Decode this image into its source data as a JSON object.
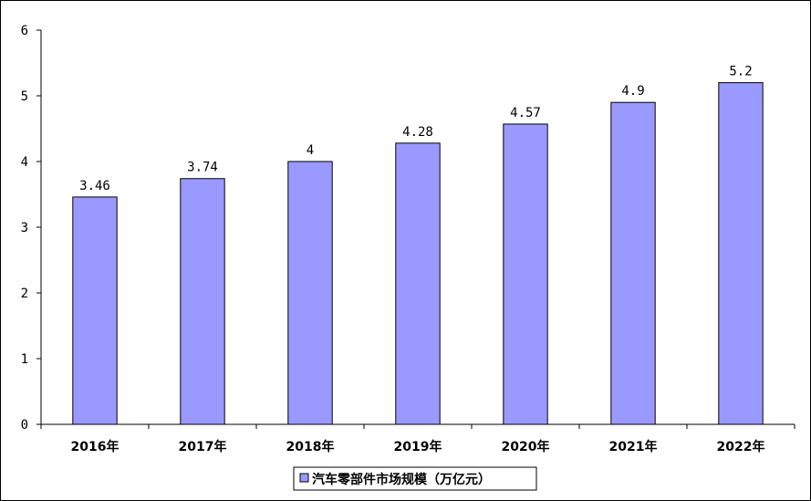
{
  "chart_data": {
    "type": "bar",
    "categories": [
      "2016年",
      "2017年",
      "2018年",
      "2019年",
      "2020年",
      "2021年",
      "2022年"
    ],
    "series": [
      {
        "name": "汽车零部件市场规模（万亿元）",
        "values": [
          3.46,
          3.74,
          4,
          4.28,
          4.57,
          4.9,
          5.2
        ],
        "labels": [
          "3.46",
          "3.74",
          "4",
          "4.28",
          "4.57",
          "4.9",
          "5.2"
        ],
        "color": "#9999ff"
      }
    ],
    "title": "",
    "xlabel": "",
    "ylabel": "",
    "ylim": [
      0,
      6
    ],
    "yticks": [
      "0",
      "1",
      "2",
      "3",
      "4",
      "5",
      "6"
    ],
    "grid": false,
    "legend": "bottom-center"
  }
}
